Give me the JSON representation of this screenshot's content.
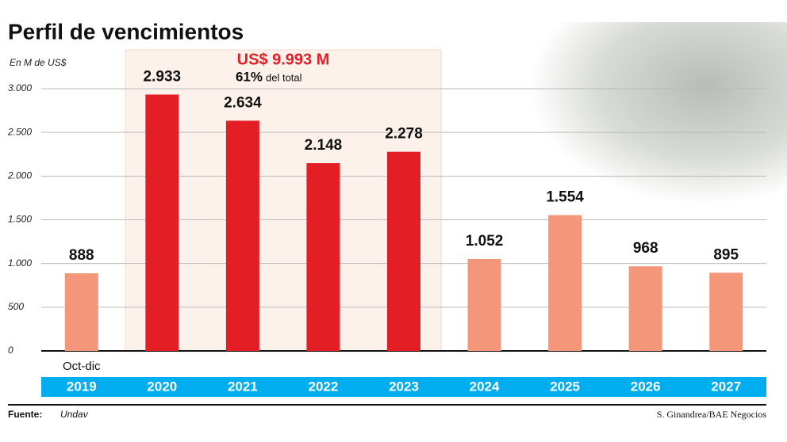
{
  "chart_data": {
    "type": "bar",
    "title": "Perfil de vencimientos",
    "unit_label": "En M de US$",
    "categories": [
      "2019",
      "2020",
      "2021",
      "2022",
      "2023",
      "2024",
      "2025",
      "2026",
      "2027"
    ],
    "category_sublabels": [
      "Oct-dic",
      null,
      null,
      null,
      null,
      null,
      null,
      null,
      null
    ],
    "values": [
      888,
      2933,
      2634,
      2148,
      2278,
      1052,
      1554,
      968,
      895
    ],
    "value_labels": [
      "888",
      "2.933",
      "2.634",
      "2.148",
      "2.278",
      "1.052",
      "1.554",
      "968",
      "895"
    ],
    "colors": [
      "#f4967a",
      "#e31e24",
      "#e31e24",
      "#e31e24",
      "#e31e24",
      "#f4967a",
      "#f4967a",
      "#f4967a",
      "#f4967a"
    ],
    "ylim": [
      0,
      3000
    ],
    "yticks": [
      0,
      500,
      {
        "value": 1000,
        "label": "1.000"
      },
      {
        "value": 1500,
        "label": "1.500"
      },
      {
        "value": 2000,
        "label": "2.000"
      },
      {
        "value": 2500,
        "label": "2.500"
      },
      {
        "value": 3000,
        "label": "3.000"
      }
    ],
    "grid": true,
    "highlight": {
      "amount": "US$ 9.993 M",
      "share": "61%",
      "share_text": "del total"
    },
    "source_label": "Fuente:",
    "source": "Undav",
    "credit": "S. Ginandrea/BAE Negocios"
  }
}
